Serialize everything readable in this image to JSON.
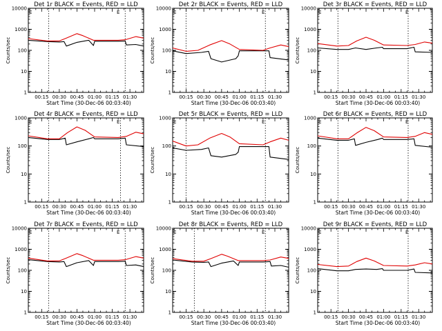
{
  "figure": {
    "x_axis_title": "Start Time (30-Dec-06 00:03:40)",
    "y_axis_title": "Counts/sec",
    "x_tick_labels": [
      "00:15",
      "00:30",
      "00:45",
      "01:00",
      "01:15",
      "01:30"
    ],
    "y_tick_labels": [
      "1",
      "10",
      "100",
      "1000",
      "10000"
    ],
    "corner_mark": "E",
    "colors": {
      "events": "#000000",
      "lld": "#e00000",
      "axes": "#000000",
      "background": "#ffffff"
    }
  },
  "chart_data": [
    {
      "type": "line",
      "title": "Det 1r BLACK = Events, RED = LLD",
      "ylabel": "Counts/sec",
      "xlabel": "Start Time (30-Dec-06 00:03:40)",
      "xlim": [
        "00:03:40",
        "01:41:40"
      ],
      "ylim": [
        1,
        10000
      ],
      "yscale": "log",
      "vlines": [
        "00:21",
        "01:26"
      ],
      "series": [
        {
          "name": "Events",
          "color": "#000000",
          "x": [
            "00:03:40",
            "00:20",
            "00:30",
            "00:34",
            "00:36",
            "00:45",
            "00:55",
            "00:59",
            "01:00",
            "01:20",
            "01:26",
            "01:27",
            "01:35",
            "01:41:40"
          ],
          "values": [
            300,
            260,
            250,
            260,
            160,
            240,
            300,
            170,
            270,
            270,
            280,
            180,
            190,
            160
          ]
        },
        {
          "name": "LLD",
          "color": "#e00000",
          "x": [
            "00:03:40",
            "00:20",
            "00:30",
            "00:36",
            "00:45",
            "00:50",
            "00:59",
            "01:02",
            "01:20",
            "01:26",
            "01:35",
            "01:41:40"
          ],
          "values": [
            360,
            280,
            280,
            380,
            620,
            500,
            300,
            300,
            300,
            320,
            450,
            380
          ]
        }
      ]
    },
    {
      "type": "line",
      "title": "Det 2r BLACK = Events, RED = LLD",
      "ylabel": "Counts/sec",
      "xlabel": "Start Time (30-Dec-06 00:03:40)",
      "xlim": [
        "00:03:40",
        "01:41:40"
      ],
      "ylim": [
        1,
        10000
      ],
      "yscale": "log",
      "vlines": [
        "00:15",
        "01:22"
      ],
      "series": [
        {
          "name": "Events",
          "color": "#000000",
          "x": [
            "00:03:40",
            "00:15",
            "00:28",
            "00:34",
            "00:36",
            "00:45",
            "00:57",
            "00:59",
            "01:00",
            "01:20",
            "01:25",
            "01:26",
            "01:41:40"
          ],
          "values": [
            95,
            70,
            80,
            90,
            40,
            28,
            40,
            55,
            95,
            95,
            95,
            45,
            35
          ]
        },
        {
          "name": "LLD",
          "color": "#e00000",
          "x": [
            "00:03:40",
            "00:15",
            "00:25",
            "00:35",
            "00:45",
            "00:52",
            "01:00",
            "01:20",
            "01:26",
            "01:35",
            "01:41:40"
          ],
          "values": [
            130,
            90,
            100,
            180,
            290,
            200,
            110,
            100,
            130,
            180,
            150
          ]
        }
      ]
    },
    {
      "type": "line",
      "title": "Det 3r BLACK = Events, RED = LLD",
      "ylabel": "Counts/sec",
      "xlabel": "Start Time (30-Dec-06 00:03:40)",
      "xlim": [
        "00:03:40",
        "01:41:40"
      ],
      "ylim": [
        1,
        10000
      ],
      "yscale": "log",
      "vlines": [
        "00:21",
        "01:21"
      ],
      "series": [
        {
          "name": "Events",
          "color": "#000000",
          "x": [
            "00:03:40",
            "00:20",
            "00:30",
            "00:36",
            "00:45",
            "00:54",
            "00:59",
            "01:00",
            "01:20",
            "01:26",
            "01:27",
            "01:41:40"
          ],
          "values": [
            130,
            110,
            110,
            130,
            110,
            130,
            140,
            120,
            120,
            140,
            85,
            80
          ]
        },
        {
          "name": "LLD",
          "color": "#e00000",
          "x": [
            "00:03:40",
            "00:20",
            "00:30",
            "00:37",
            "00:45",
            "00:52",
            "01:00",
            "01:20",
            "01:27",
            "01:35",
            "01:41:40"
          ],
          "values": [
            210,
            160,
            170,
            280,
            420,
            300,
            180,
            170,
            190,
            250,
            220
          ]
        }
      ]
    },
    {
      "type": "line",
      "title": "Det 4r BLACK = Events, RED = LLD",
      "ylabel": "Counts/sec",
      "xlabel": "Start Time (30-Dec-06 00:03:40)",
      "xlim": [
        "00:03:40",
        "01:41:40"
      ],
      "ylim": [
        1,
        1000
      ],
      "yscale": "log",
      "vlines": [
        "00:21",
        "01:22"
      ],
      "series": [
        {
          "name": "Events",
          "color": "#000000",
          "x": [
            "00:03:40",
            "00:20",
            "00:30",
            "00:35",
            "00:36",
            "00:45",
            "00:55",
            "00:59",
            "01:00",
            "01:20",
            "01:26",
            "01:27",
            "01:41:40"
          ],
          "values": [
            200,
            170,
            170,
            190,
            110,
            140,
            180,
            200,
            180,
            180,
            190,
            110,
            95
          ]
        },
        {
          "name": "LLD",
          "color": "#e00000",
          "x": [
            "00:03:40",
            "00:20",
            "00:30",
            "00:37",
            "00:45",
            "00:52",
            "01:00",
            "01:20",
            "01:27",
            "01:35",
            "01:41:40"
          ],
          "values": [
            230,
            180,
            180,
            300,
            480,
            360,
            210,
            200,
            220,
            310,
            270
          ]
        }
      ]
    },
    {
      "type": "line",
      "title": "Det 5r BLACK = Events, RED = LLD",
      "ylabel": "Counts/sec",
      "xlabel": "Start Time (30-Dec-06 00:03:40)",
      "xlim": [
        "00:03:40",
        "01:41:40"
      ],
      "ylim": [
        1,
        1000
      ],
      "yscale": "log",
      "vlines": [
        "00:15",
        "01:22"
      ],
      "series": [
        {
          "name": "Events",
          "color": "#000000",
          "x": [
            "00:03:40",
            "00:15",
            "00:28",
            "00:34",
            "00:36",
            "00:45",
            "00:57",
            "00:59",
            "01:00",
            "01:20",
            "01:25",
            "01:26",
            "01:41:40"
          ],
          "values": [
            85,
            70,
            75,
            85,
            45,
            40,
            50,
            60,
            95,
            95,
            95,
            40,
            33
          ]
        },
        {
          "name": "LLD",
          "color": "#e00000",
          "x": [
            "00:03:40",
            "00:15",
            "00:25",
            "00:35",
            "00:45",
            "00:52",
            "01:00",
            "01:20",
            "01:26",
            "01:35",
            "01:41:40"
          ],
          "values": [
            150,
            100,
            110,
            190,
            280,
            210,
            120,
            110,
            140,
            190,
            160
          ]
        }
      ]
    },
    {
      "type": "line",
      "title": "Det 6r BLACK = Events, RED = LLD",
      "ylabel": "Counts/sec",
      "xlabel": "Start Time (30-Dec-06 00:03:40)",
      "xlim": [
        "00:03:40",
        "01:41:40"
      ],
      "ylim": [
        1,
        1000
      ],
      "yscale": "log",
      "vlines": [
        "00:21",
        "01:21"
      ],
      "series": [
        {
          "name": "Events",
          "color": "#000000",
          "x": [
            "00:03:40",
            "00:20",
            "00:30",
            "00:35",
            "00:36",
            "00:45",
            "00:55",
            "00:59",
            "01:00",
            "01:20",
            "01:26",
            "01:27",
            "01:41:40"
          ],
          "values": [
            190,
            160,
            160,
            180,
            105,
            135,
            170,
            190,
            170,
            170,
            180,
            105,
            90
          ]
        },
        {
          "name": "LLD",
          "color": "#e00000",
          "x": [
            "00:03:40",
            "00:20",
            "00:30",
            "00:37",
            "00:45",
            "00:52",
            "01:00",
            "01:20",
            "01:27",
            "01:35",
            "01:41:40"
          ],
          "values": [
            230,
            180,
            180,
            290,
            460,
            350,
            210,
            200,
            220,
            300,
            260
          ]
        }
      ]
    },
    {
      "type": "line",
      "title": "Det 7r BLACK = Events, RED = LLD",
      "ylabel": "Counts/sec",
      "xlabel": "Start Time (30-Dec-06 00:03:40)",
      "xlim": [
        "00:03:40",
        "01:41:40"
      ],
      "ylim": [
        1,
        10000
      ],
      "yscale": "log",
      "vlines": [
        "00:21",
        "01:26"
      ],
      "series": [
        {
          "name": "Events",
          "color": "#000000",
          "x": [
            "00:03:40",
            "00:20",
            "00:30",
            "00:34",
            "00:36",
            "00:45",
            "00:55",
            "00:59",
            "01:00",
            "01:20",
            "01:26",
            "01:27",
            "01:35",
            "01:41:40"
          ],
          "values": [
            320,
            260,
            250,
            260,
            150,
            230,
            290,
            170,
            260,
            260,
            270,
            170,
            180,
            150
          ]
        },
        {
          "name": "LLD",
          "color": "#e00000",
          "x": [
            "00:03:40",
            "00:20",
            "00:30",
            "00:36",
            "00:45",
            "00:50",
            "00:59",
            "01:02",
            "01:20",
            "01:26",
            "01:35",
            "01:41:40"
          ],
          "values": [
            380,
            280,
            280,
            380,
            620,
            500,
            300,
            300,
            300,
            320,
            450,
            380
          ]
        }
      ]
    },
    {
      "type": "line",
      "title": "Det 8r BLACK = Events, RED = LLD",
      "ylabel": "Counts/sec",
      "xlabel": "Start Time (30-Dec-06 00:03:40)",
      "xlim": [
        "00:03:40",
        "01:41:40"
      ],
      "ylim": [
        1,
        10000
      ],
      "yscale": "log",
      "vlines": [
        "00:22",
        "01:22"
      ],
      "series": [
        {
          "name": "Events",
          "color": "#000000",
          "x": [
            "00:03:40",
            "00:20",
            "00:30",
            "00:34",
            "00:36",
            "00:45",
            "00:55",
            "00:59",
            "01:00",
            "01:20",
            "01:26",
            "01:27",
            "01:35",
            "01:41:40"
          ],
          "values": [
            310,
            250,
            240,
            250,
            150,
            220,
            280,
            170,
            250,
            250,
            260,
            160,
            170,
            140
          ]
        },
        {
          "name": "LLD",
          "color": "#e00000",
          "x": [
            "00:03:40",
            "00:20",
            "00:30",
            "00:36",
            "00:45",
            "00:50",
            "00:59",
            "01:02",
            "01:20",
            "01:26",
            "01:35",
            "01:41:40"
          ],
          "values": [
            360,
            270,
            270,
            360,
            580,
            470,
            290,
            290,
            290,
            310,
            430,
            370
          ]
        }
      ]
    },
    {
      "type": "line",
      "title": "Det 9r BLACK = Events, RED = LLD",
      "ylabel": "Counts/sec",
      "xlabel": "Start Time (30-Dec-06 00:03:40)",
      "xlim": [
        "00:03:40",
        "01:41:40"
      ],
      "ylim": [
        1,
        10000
      ],
      "yscale": "log",
      "vlines": [
        "00:21",
        "01:21"
      ],
      "series": [
        {
          "name": "Events",
          "color": "#000000",
          "x": [
            "00:03:40",
            "00:20",
            "00:30",
            "00:36",
            "00:45",
            "00:54",
            "00:59",
            "01:00",
            "01:20",
            "01:26",
            "01:27",
            "01:41:40"
          ],
          "values": [
            120,
            95,
            95,
            110,
            115,
            110,
            120,
            100,
            100,
            115,
            80,
            75
          ]
        },
        {
          "name": "LLD",
          "color": "#e00000",
          "x": [
            "00:03:40",
            "00:20",
            "00:30",
            "00:37",
            "00:45",
            "00:52",
            "01:00",
            "01:20",
            "01:27",
            "01:35",
            "01:41:40"
          ],
          "values": [
            190,
            150,
            160,
            260,
            380,
            280,
            170,
            160,
            180,
            230,
            200
          ]
        }
      ]
    }
  ]
}
